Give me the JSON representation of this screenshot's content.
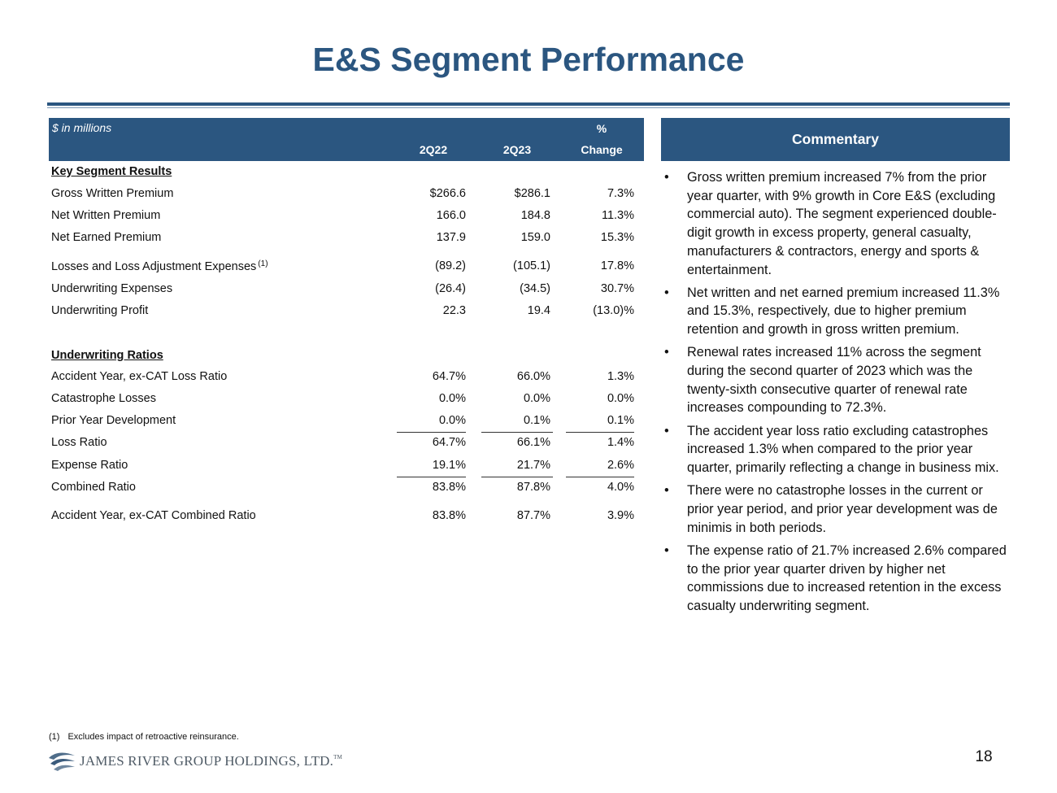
{
  "title": "E&S Segment Performance",
  "table": {
    "units_label": "$ in millions",
    "col1": "2Q22",
    "col2": "2Q23",
    "col3_top": "%",
    "col3": "Change",
    "sections": {
      "key": "Key Segment Results",
      "ratios": "Underwriting Ratios"
    },
    "rows": [
      {
        "label": "Gross Written Premium",
        "v1": "$266.6",
        "v2": "$286.1",
        "v3": "7.3%"
      },
      {
        "label": "Net Written Premium",
        "v1": "166.0",
        "v2": "184.8",
        "v3": "11.3%"
      },
      {
        "label": "Net Earned Premium",
        "v1": "137.9",
        "v2": "159.0",
        "v3": "15.3%"
      },
      {
        "label": "Losses and Loss Adjustment Expenses",
        "sup": "(1)",
        "v1": "(89.2)",
        "v2": "(105.1)",
        "v3": "17.8%"
      },
      {
        "label": "Underwriting Expenses",
        "v1": "(26.4)",
        "v2": "(34.5)",
        "v3": "30.7%"
      },
      {
        "label": "Underwriting Profit",
        "v1": "22.3",
        "v2": "19.4",
        "v3": "(13.0)%"
      },
      {
        "label": "Accident Year, ex-CAT Loss Ratio",
        "v1": "64.7%",
        "v2": "66.0%",
        "v3": "1.3%"
      },
      {
        "label": "Catastrophe Losses",
        "v1": "0.0%",
        "v2": "0.0%",
        "v3": "0.0%"
      },
      {
        "label": "Prior Year Development",
        "v1": "0.0%",
        "v2": "0.1%",
        "v3": "0.1%"
      },
      {
        "label": "Loss Ratio",
        "v1": "64.7%",
        "v2": "66.1%",
        "v3": "1.4%"
      },
      {
        "label": "Expense Ratio",
        "v1": "19.1%",
        "v2": "21.7%",
        "v3": "2.6%"
      },
      {
        "label": "Combined Ratio",
        "v1": "83.8%",
        "v2": "87.8%",
        "v3": "4.0%"
      },
      {
        "label": "Accident Year, ex-CAT Combined Ratio",
        "v1": "83.8%",
        "v2": "87.7%",
        "v3": "3.9%"
      }
    ]
  },
  "commentary": {
    "header": "Commentary",
    "bullet": "•",
    "items": [
      "Gross written premium increased 7% from the prior year quarter, with 9% growth in Core E&S (excluding commercial auto). The segment experienced double-digit growth in excess property, general casualty, manufacturers & contractors, energy and sports & entertainment.",
      "Net written and net earned premium increased 11.3% and 15.3%, respectively, due to higher premium retention and growth in gross written premium.",
      "Renewal rates increased 11% across the segment during the second quarter of 2023 which was the twenty-sixth consecutive quarter of renewal rate increases compounding to 72.3%.",
      "The accident year loss ratio excluding catastrophes increased 1.3% when compared to the prior year quarter, primarily reflecting a change in business mix.",
      "There were no catastrophe losses in the current or prior year period, and prior year development was de minimis in both periods.",
      "The expense ratio of 21.7% increased 2.6% compared to the prior year quarter driven by higher net commissions due to increased retention in the excess casualty underwriting segment."
    ]
  },
  "footnote": {
    "num": "(1)",
    "text": "Excludes impact of retroactive reinsurance."
  },
  "logo": {
    "text": "JAMES RIVER GROUP HOLDINGS, LTD.",
    "tm": "TM"
  },
  "page_number": "18",
  "colors": {
    "brand": "#2b5680"
  }
}
